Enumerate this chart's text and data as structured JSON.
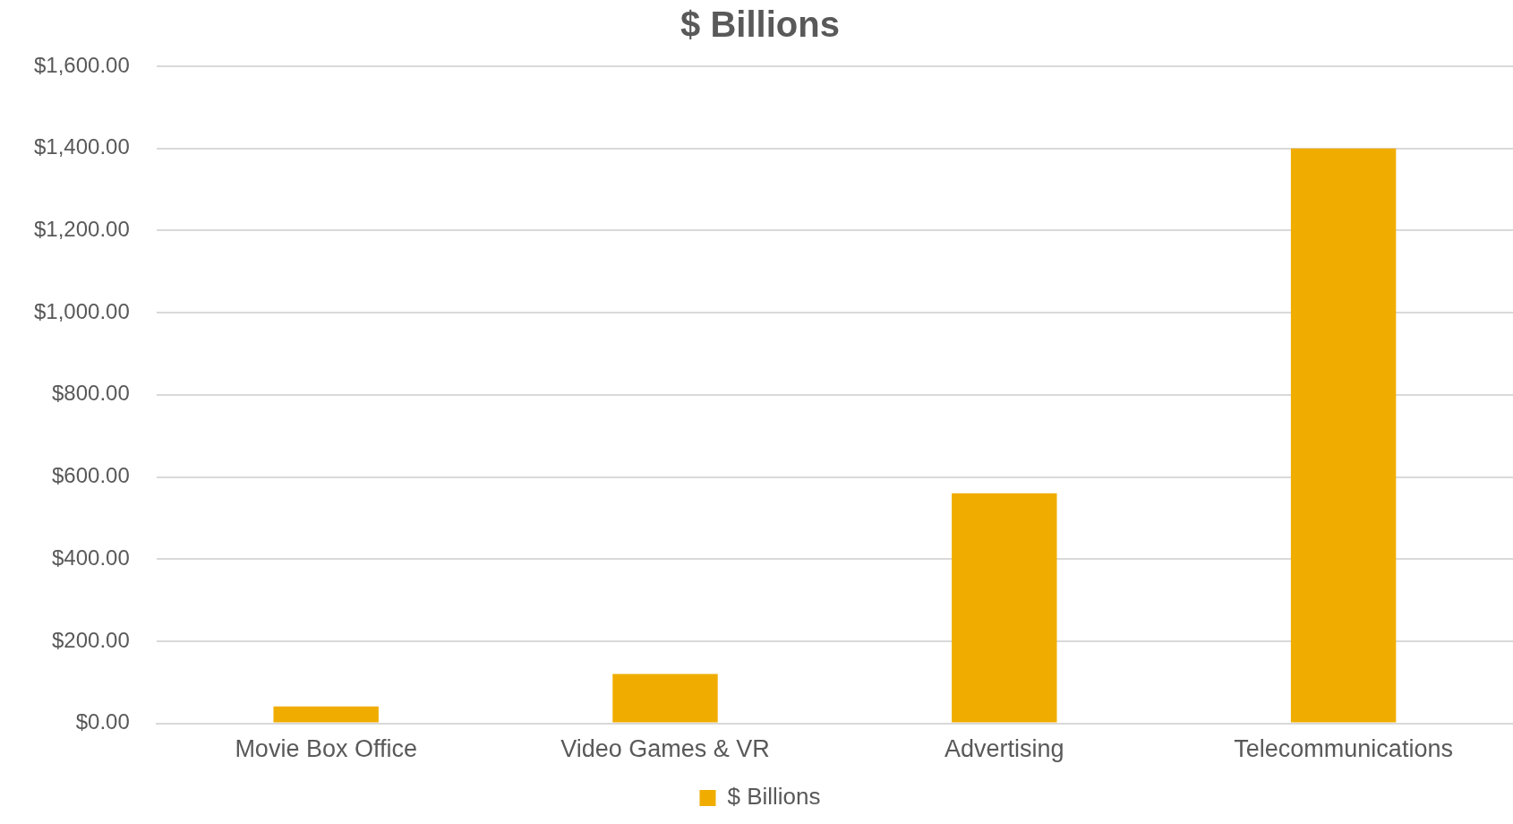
{
  "chart_data": {
    "type": "bar",
    "title": "$ Billions",
    "categories": [
      "Movie Box Office",
      "Video Games & VR",
      "Advertising",
      "Telecommunications"
    ],
    "series": [
      {
        "name": "$ Billions",
        "color": "#f0ad00",
        "values": [
          41,
          120,
          560,
          1400
        ]
      }
    ],
    "ylim": [
      0,
      1600
    ],
    "yticks": [
      {
        "value": 0,
        "label": "$0.00"
      },
      {
        "value": 200,
        "label": "$200.00"
      },
      {
        "value": 400,
        "label": "$400.00"
      },
      {
        "value": 600,
        "label": "$600.00"
      },
      {
        "value": 800,
        "label": "$800.00"
      },
      {
        "value": 1000,
        "label": "$1,000.00"
      },
      {
        "value": 1200,
        "label": "$1,200.00"
      },
      {
        "value": 1400,
        "label": "$1,400.00"
      },
      {
        "value": 1600,
        "label": "$1,600.00"
      }
    ],
    "grid": "y",
    "legend": "bottom"
  }
}
